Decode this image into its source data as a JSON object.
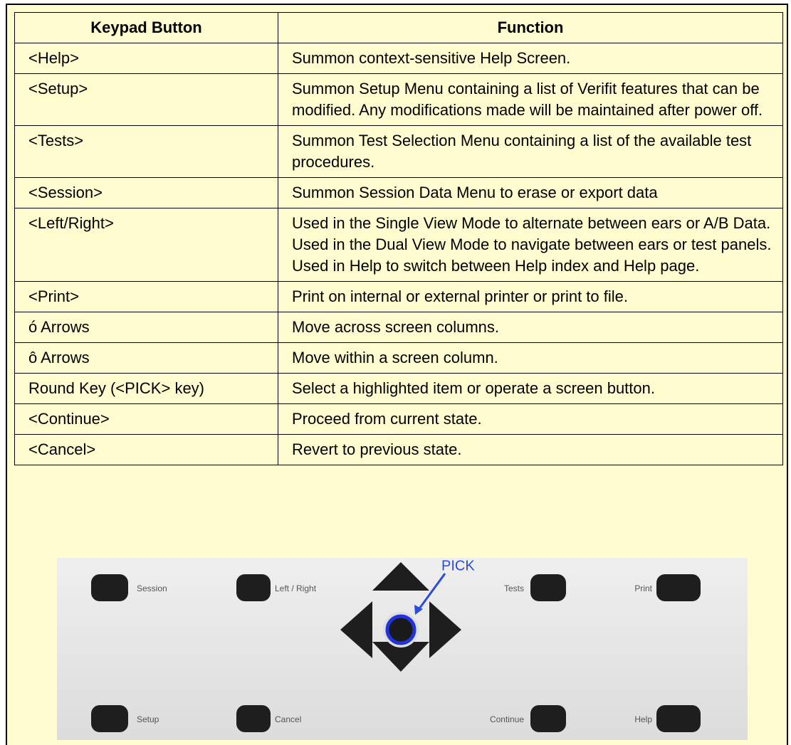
{
  "table": {
    "header": [
      "Keypad Button",
      "Function"
    ],
    "rows": [
      [
        "<Help>",
        "Summon context-sensitive Help Screen."
      ],
      [
        "<Setup>",
        "Summon Setup Menu containing a list of Verifit features that can be modified. Any modifications made will be maintained after power off."
      ],
      [
        "<Tests>",
        "Summon Test Selection Menu containing a list of the available test procedures."
      ],
      [
        "<Session>",
        "Summon Session Data Menu to erase or export data"
      ],
      [
        "<Left/Right>",
        "Used in the Single View Mode to alternate between ears or A/B Data. Used in the Dual View Mode to navigate between ears or test panels. Used in Help to switch between Help index and Help page."
      ],
      [
        "<Print>",
        "Print on internal or external printer or print to file."
      ],
      [
        "ó Arrows",
        "Move across screen columns."
      ],
      [
        "ô Arrows",
        "Move within a screen column."
      ],
      [
        "Round Key (<PICK> key)",
        "Select a highlighted item or operate a screen button."
      ],
      [
        "<Continue>",
        "Proceed from current state."
      ],
      [
        "<Cancel>",
        "Revert to previous state."
      ]
    ]
  },
  "keypad": {
    "pick": "PICK",
    "session": "Session",
    "left_right": "Left / Right",
    "tests": "Tests",
    "print": "Print",
    "setup": "Setup",
    "cancel": "Cancel",
    "continue": "Continue",
    "help": "Help"
  }
}
